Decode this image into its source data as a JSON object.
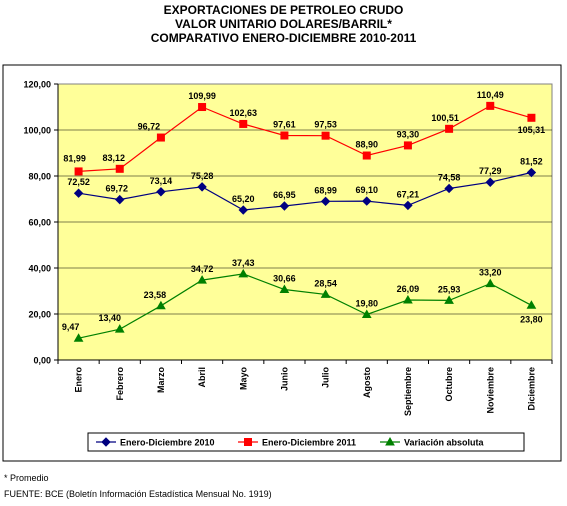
{
  "chart_data": {
    "type": "line",
    "title_lines": [
      "EXPORTACIONES DE PETROLEO CRUDO",
      "VALOR UNITARIO DOLARES/BARRIL*",
      "COMPARATIVO ENERO-DICIEMBRE 2010-2011"
    ],
    "categories": [
      "Enero",
      "Febrero",
      "Marzo",
      "Abril",
      "Mayo",
      "Junio",
      "Julio",
      "Agosto",
      "Septiembre",
      "Octubre",
      "Noviembre",
      "Diciembre"
    ],
    "ylim": [
      0,
      120
    ],
    "yticks": [
      "0,00",
      "20,00",
      "40,00",
      "60,00",
      "80,00",
      "100,00",
      "120,00"
    ],
    "grid": true,
    "legend_position": "bottom",
    "background_color": "#FFFF99",
    "series": [
      {
        "name": "Enero-Diciembre 2010",
        "color": "#000080",
        "marker": "diamond",
        "values": [
          72.52,
          69.72,
          73.14,
          75.28,
          65.2,
          66.95,
          68.99,
          69.1,
          67.21,
          74.58,
          77.29,
          81.52
        ],
        "labels": [
          "72,52",
          "69,72",
          "73,14",
          "75,28",
          "65,20",
          "66,95",
          "68,99",
          "69,10",
          "67,21",
          "74,58",
          "77,29",
          "81,52"
        ]
      },
      {
        "name": "Enero-Diciembre 2011",
        "color": "#FF0000",
        "marker": "square",
        "values": [
          81.99,
          83.12,
          96.72,
          109.99,
          102.63,
          97.61,
          97.53,
          88.9,
          93.3,
          100.51,
          110.49,
          105.31
        ],
        "labels": [
          "81,99",
          "83,12",
          "96,72",
          "109,99",
          "102,63",
          "97,61",
          "97,53",
          "88,90",
          "93,30",
          "100,51",
          "110,49",
          "105,31"
        ]
      },
      {
        "name": "Variación absoluta",
        "color": "#008000",
        "marker": "triangle",
        "values": [
          9.47,
          13.4,
          23.58,
          34.72,
          37.43,
          30.66,
          28.54,
          19.8,
          26.09,
          25.93,
          33.2,
          23.8
        ],
        "labels": [
          "9,47",
          "13,40",
          "23,58",
          "34,72",
          "37,43",
          "30,66",
          "28,54",
          "19,80",
          "26,09",
          "25,93",
          "33,20",
          "23,80"
        ]
      }
    ]
  },
  "footnotes": {
    "note": "* Promedio",
    "source": "FUENTE: BCE (Boletín Información Estadística Mensual No. 1919)"
  }
}
